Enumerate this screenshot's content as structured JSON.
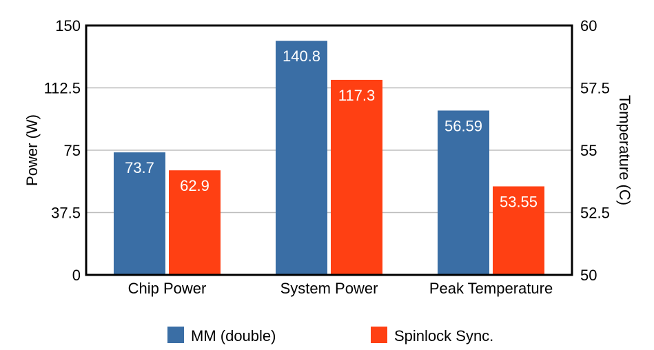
{
  "chart_data": {
    "type": "bar",
    "categories": [
      "Chip Power",
      "System Power",
      "Peak Temperature"
    ],
    "series": [
      {
        "name": "MM (double)",
        "color": "#3a6ea5",
        "values": [
          73.7,
          140.8,
          56.59
        ],
        "labels": [
          "73.7",
          "140.8",
          "56.59"
        ],
        "axis": [
          "left",
          "left",
          "right"
        ]
      },
      {
        "name": "Spinlock Sync.",
        "color": "#ff4013",
        "values": [
          62.9,
          117.3,
          53.55
        ],
        "labels": [
          "62.9",
          "117.3",
          "53.55"
        ],
        "axis": [
          "left",
          "left",
          "right"
        ]
      }
    ],
    "ylabel_left": "Power (W)",
    "ylabel_right": "Temperature (C)",
    "ylim_left": [
      0,
      150
    ],
    "ylim_right": [
      50,
      60
    ],
    "yticks_left": [
      "0",
      "37.5",
      "75",
      "112.5",
      "150"
    ],
    "yticks_right": [
      "50",
      "52.5",
      "55",
      "57.5",
      "60"
    ],
    "grid": true,
    "legend_position": "bottom"
  }
}
